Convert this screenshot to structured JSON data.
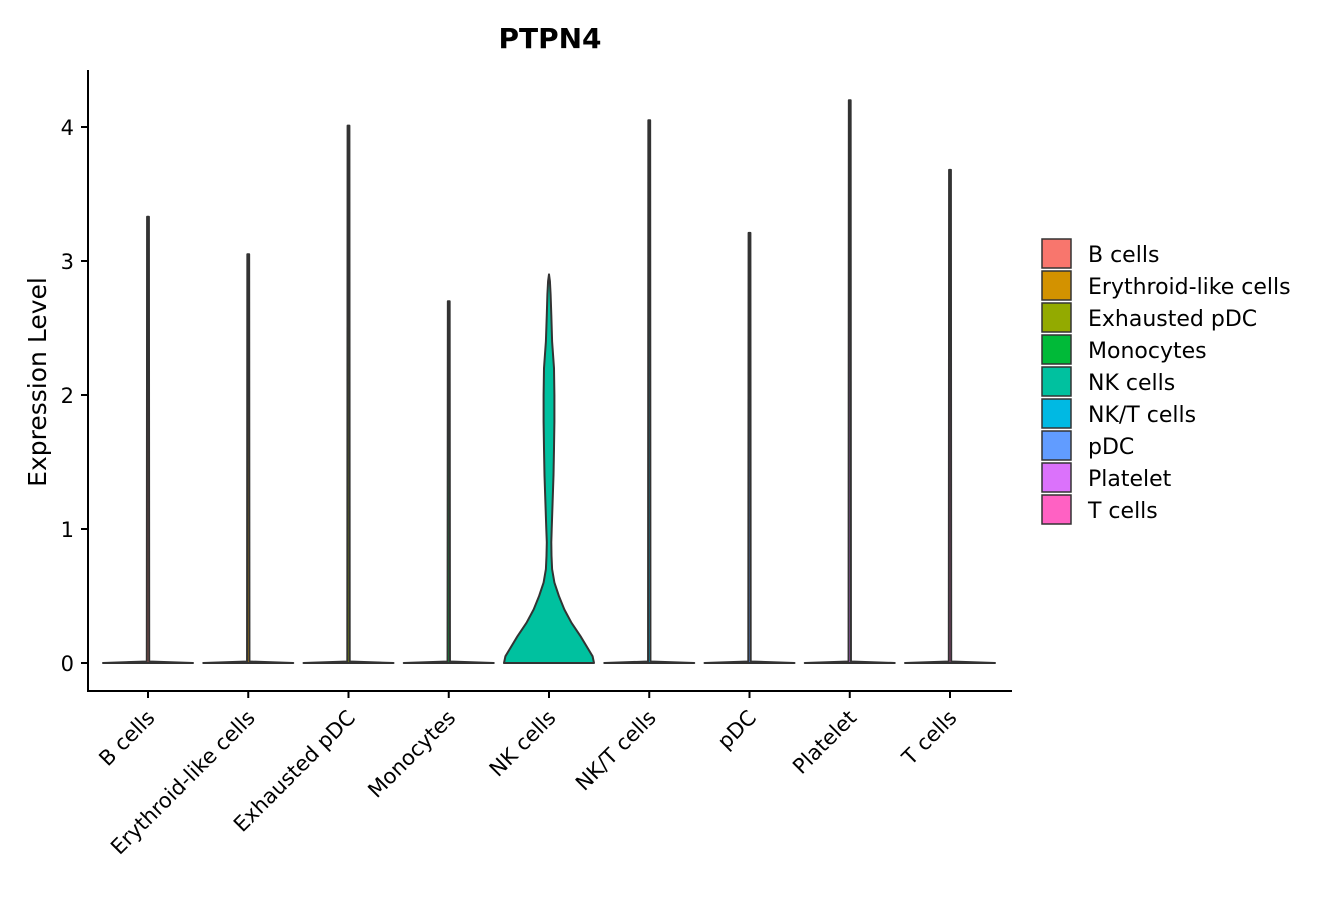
{
  "chart_data": {
    "type": "violin",
    "title": "PTPN4",
    "xlabel": "",
    "ylabel": "Expression Level",
    "ylim": [
      -0.2,
      4.25
    ],
    "yticks": [
      0,
      1,
      2,
      3,
      4
    ],
    "categories": [
      "B cells",
      "Erythroid-like cells",
      "Exhausted pDC",
      "Monocytes",
      "NK cells",
      "NK/T cells",
      "pDC",
      "Platelet",
      "T cells"
    ],
    "colors": [
      "#F8766D",
      "#D39200",
      "#93AA00",
      "#00BA38",
      "#00C19F",
      "#00B9E3",
      "#619CFF",
      "#DB72FB",
      "#FF61C3"
    ],
    "max_values": [
      3.33,
      3.05,
      4.01,
      2.7,
      2.9,
      4.05,
      3.21,
      4.2,
      3.68
    ],
    "legend": {
      "position": "right",
      "entries": [
        "B cells",
        "Erythroid-like cells",
        "Exhausted pDC",
        "Monocytes",
        "NK cells",
        "NK/T cells",
        "pDC",
        "Platelet",
        "T cells"
      ]
    },
    "grid": false,
    "nk_cells_density": [
      [
        0.0,
        1.0
      ],
      [
        0.05,
        0.97
      ],
      [
        0.1,
        0.88
      ],
      [
        0.2,
        0.7
      ],
      [
        0.3,
        0.5
      ],
      [
        0.4,
        0.34
      ],
      [
        0.5,
        0.22
      ],
      [
        0.6,
        0.12
      ],
      [
        0.7,
        0.07
      ],
      [
        0.8,
        0.055
      ],
      [
        0.9,
        0.05
      ],
      [
        1.0,
        0.06
      ],
      [
        1.2,
        0.08
      ],
      [
        1.4,
        0.1
      ],
      [
        1.6,
        0.11
      ],
      [
        1.8,
        0.12
      ],
      [
        2.0,
        0.12
      ],
      [
        2.2,
        0.11
      ],
      [
        2.4,
        0.07
      ],
      [
        2.6,
        0.05
      ],
      [
        2.75,
        0.035
      ],
      [
        2.85,
        0.02
      ],
      [
        2.9,
        0.0
      ]
    ]
  }
}
